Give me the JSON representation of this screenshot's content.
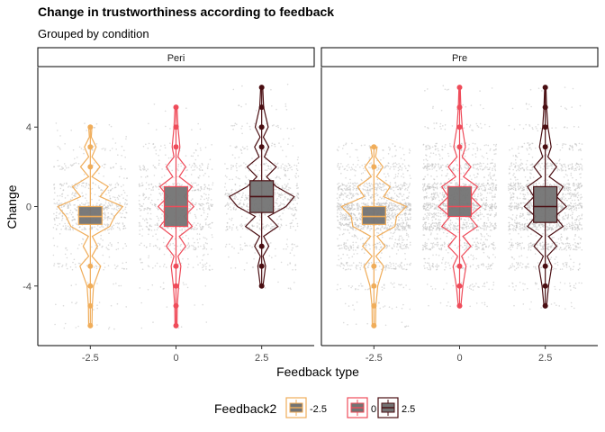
{
  "title": "Change in trustworthiness according to feedback",
  "subtitle": "Grouped by condition",
  "xlabel": "Feedback type",
  "ylabel": "Change",
  "legend": {
    "title": "Feedback2",
    "entries": [
      {
        "label": "-2.5",
        "color": "#f0ad5a"
      },
      {
        "label": "0",
        "color": "#ef4c5a"
      },
      {
        "label": "2.5",
        "color": "#4a0e12"
      }
    ]
  },
  "colors": {
    "panel_border": "#000000",
    "jitter_points": "#bdbdbd",
    "box_fill": "#737373",
    "strip_fill": "#ffffff"
  },
  "chart_data": {
    "type": "violin",
    "facets": [
      "Peri",
      "Pre"
    ],
    "categories": [
      "-2.5",
      "0",
      "2.5"
    ],
    "x_ticks": [
      "-2.5",
      "0",
      "2.5"
    ],
    "y_ticks": [
      -4,
      0,
      4
    ],
    "ylim": [
      -7.0,
      7.0
    ],
    "grid": false,
    "legend_position": "bottom",
    "groups": [
      {
        "facet": "Peri",
        "category": "-2.5",
        "color": "#f0ad5a",
        "q1": -0.9,
        "median": -0.5,
        "q3": 0.0,
        "whisker_low": -2.0,
        "whisker_high": 1.0,
        "ymin": -6,
        "ymax": 4,
        "n_points": 700,
        "density": [
          [
            -6,
            0.05
          ],
          [
            -5,
            0.06
          ],
          [
            -4,
            0.1
          ],
          [
            -3,
            0.32
          ],
          [
            -2.5,
            0.05
          ],
          [
            -2,
            0.22
          ],
          [
            -1.5,
            0.06
          ],
          [
            -1,
            0.6
          ],
          [
            -0.5,
            0.75
          ],
          [
            0,
            1.0
          ],
          [
            0.5,
            0.3
          ],
          [
            1,
            0.55
          ],
          [
            1.5,
            0.05
          ],
          [
            2,
            0.3
          ],
          [
            2.5,
            0.05
          ],
          [
            3,
            0.18
          ],
          [
            3.5,
            0.03
          ],
          [
            4,
            0.05
          ]
        ]
      },
      {
        "facet": "Peri",
        "category": "0",
        "color": "#ef4c5a",
        "q1": -1.0,
        "median": 0.0,
        "q3": 1.0,
        "whisker_low": -2.0,
        "whisker_high": 2.0,
        "ymin": -6,
        "ymax": 5,
        "n_points": 700,
        "density": [
          [
            -6,
            0.03
          ],
          [
            -5,
            0.04
          ],
          [
            -4,
            0.08
          ],
          [
            -3,
            0.15
          ],
          [
            -2.5,
            0.06
          ],
          [
            -2,
            0.3
          ],
          [
            -1.5,
            0.1
          ],
          [
            -1,
            0.5
          ],
          [
            -0.5,
            0.25
          ],
          [
            0,
            0.55
          ],
          [
            0.5,
            0.25
          ],
          [
            1,
            0.5
          ],
          [
            1.5,
            0.1
          ],
          [
            2,
            0.3
          ],
          [
            2.5,
            0.06
          ],
          [
            3,
            0.12
          ],
          [
            4,
            0.06
          ],
          [
            5,
            0.03
          ]
        ]
      },
      {
        "facet": "Peri",
        "category": "2.5",
        "color": "#4a0e12",
        "q1": -0.3,
        "median": 0.5,
        "q3": 1.3,
        "whisker_low": -1.5,
        "whisker_high": 2.5,
        "ymin": -4,
        "ymax": 6,
        "n_points": 700,
        "density": [
          [
            -4,
            0.04
          ],
          [
            -3,
            0.12
          ],
          [
            -2.5,
            0.04
          ],
          [
            -2,
            0.22
          ],
          [
            -1.5,
            0.06
          ],
          [
            -1,
            0.5
          ],
          [
            -0.5,
            0.2
          ],
          [
            0,
            0.75
          ],
          [
            0.5,
            1.0
          ],
          [
            1,
            0.45
          ],
          [
            1.5,
            0.15
          ],
          [
            2,
            0.45
          ],
          [
            2.5,
            0.08
          ],
          [
            3,
            0.22
          ],
          [
            3.5,
            0.05
          ],
          [
            4,
            0.2
          ],
          [
            5,
            0.06
          ],
          [
            6,
            0.03
          ]
        ]
      },
      {
        "facet": "Pre",
        "category": "-2.5",
        "color": "#f0ad5a",
        "q1": -0.9,
        "median": -0.5,
        "q3": 0.0,
        "whisker_low": -2.0,
        "whisker_high": 1.0,
        "ymin": -6,
        "ymax": 3,
        "n_points": 1500,
        "density": [
          [
            -6,
            0.05
          ],
          [
            -5,
            0.06
          ],
          [
            -4,
            0.12
          ],
          [
            -3,
            0.3
          ],
          [
            -2.5,
            0.06
          ],
          [
            -2,
            0.35
          ],
          [
            -1.5,
            0.1
          ],
          [
            -1,
            0.65
          ],
          [
            -0.5,
            0.7
          ],
          [
            0,
            1.0
          ],
          [
            0.5,
            0.3
          ],
          [
            1,
            0.5
          ],
          [
            1.5,
            0.08
          ],
          [
            2,
            0.28
          ],
          [
            2.5,
            0.05
          ],
          [
            3,
            0.1
          ]
        ]
      },
      {
        "facet": "Pre",
        "category": "0",
        "color": "#ef4c5a",
        "q1": -0.5,
        "median": 0.0,
        "q3": 1.0,
        "whisker_low": -2.0,
        "whisker_high": 2.0,
        "ymin": -5,
        "ymax": 6,
        "n_points": 1500,
        "density": [
          [
            -5,
            0.04
          ],
          [
            -4,
            0.1
          ],
          [
            -3,
            0.2
          ],
          [
            -2.5,
            0.06
          ],
          [
            -2,
            0.35
          ],
          [
            -1.5,
            0.1
          ],
          [
            -1,
            0.55
          ],
          [
            -0.5,
            0.3
          ],
          [
            0,
            0.65
          ],
          [
            0.5,
            0.35
          ],
          [
            1,
            0.55
          ],
          [
            1.5,
            0.12
          ],
          [
            2,
            0.35
          ],
          [
            2.5,
            0.08
          ],
          [
            3,
            0.18
          ],
          [
            4,
            0.08
          ],
          [
            5,
            0.04
          ],
          [
            6,
            0.02
          ]
        ]
      },
      {
        "facet": "Pre",
        "category": "2.5",
        "color": "#4a0e12",
        "q1": -0.8,
        "median": 0.0,
        "q3": 1.0,
        "whisker_low": -2.0,
        "whisker_high": 2.0,
        "ymin": -5,
        "ymax": 6,
        "n_points": 1500,
        "density": [
          [
            -5,
            0.04
          ],
          [
            -4,
            0.1
          ],
          [
            -3,
            0.2
          ],
          [
            -2.5,
            0.06
          ],
          [
            -2,
            0.35
          ],
          [
            -1.5,
            0.1
          ],
          [
            -1,
            0.55
          ],
          [
            -0.5,
            0.3
          ],
          [
            0,
            0.65
          ],
          [
            0.5,
            0.35
          ],
          [
            1,
            0.55
          ],
          [
            1.5,
            0.12
          ],
          [
            2,
            0.35
          ],
          [
            2.5,
            0.08
          ],
          [
            3,
            0.18
          ],
          [
            4,
            0.08
          ],
          [
            5,
            0.04
          ],
          [
            6,
            0.02
          ]
        ]
      }
    ]
  }
}
